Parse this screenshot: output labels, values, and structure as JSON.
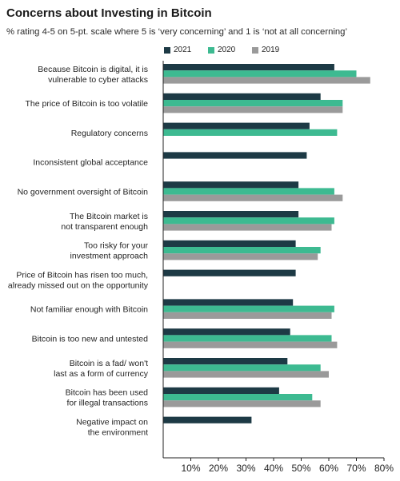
{
  "title": "Concerns about Investing in Bitcoin",
  "subtitle": "% rating 4-5 on 5-pt. scale where 5 is ‘very concerning’ and 1 is ‘not at all concerning’",
  "colors": {
    "2021": "#1d3a45",
    "2020": "#3dba91",
    "2019": "#9a9a9a",
    "axis": "#222222",
    "text": "#222222"
  },
  "chart_data": {
    "type": "bar",
    "orientation": "horizontal",
    "title": "Concerns about Investing in Bitcoin",
    "subtitle": "% rating 4-5 on 5-pt. scale where 5 is ‘very concerning’ and 1 is ‘not at all concerning’",
    "xlim": [
      0,
      80
    ],
    "xticks": [
      10,
      20,
      30,
      40,
      50,
      60,
      70,
      80
    ],
    "xtick_labels": [
      "10%",
      "20%",
      "30%",
      "40%",
      "50%",
      "60%",
      "70%",
      "80%"
    ],
    "legend_position": "top",
    "grid": false,
    "categories": [
      [
        "Because Bitcoin is digital, it is",
        "vulnerable to cyber attacks"
      ],
      [
        "The price of Bitcoin is too volatile"
      ],
      [
        "Regulatory concerns"
      ],
      [
        "Inconsistent global acceptance"
      ],
      [
        "No government oversight of Bitcoin"
      ],
      [
        "The Bitcoin market is",
        "not transparent enough"
      ],
      [
        "Too risky for your",
        "investment approach"
      ],
      [
        "Price of Bitcoin has risen too much,",
        "already missed out on the opportunity"
      ],
      [
        "Not familiar enough with Bitcoin"
      ],
      [
        "Bitcoin is too new and untested"
      ],
      [
        "Bitcoin is a fad/ won't",
        "last as a form of currency"
      ],
      [
        "Bitcoin has been used",
        "for illegal transactions"
      ],
      [
        "Negative impact on",
        "the environment"
      ]
    ],
    "series": [
      {
        "name": "2021",
        "values": [
          62,
          57,
          53,
          52,
          49,
          49,
          48,
          48,
          47,
          46,
          45,
          42,
          32
        ]
      },
      {
        "name": "2020",
        "values": [
          70,
          65,
          63,
          null,
          62,
          62,
          57,
          null,
          62,
          61,
          57,
          54,
          null
        ]
      },
      {
        "name": "2019",
        "values": [
          75,
          65,
          null,
          null,
          65,
          61,
          56,
          null,
          61,
          63,
          60,
          57,
          null
        ]
      }
    ]
  }
}
